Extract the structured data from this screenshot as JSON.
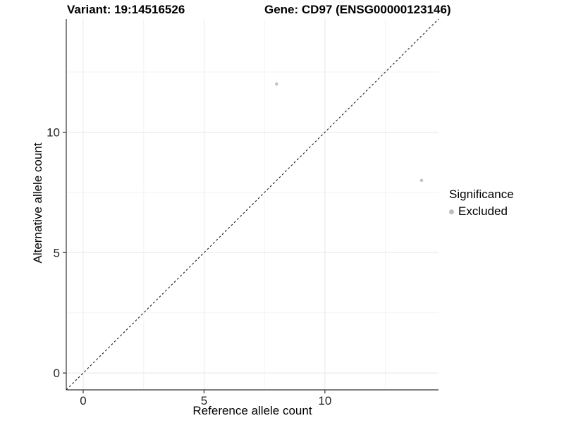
{
  "chart_data": {
    "type": "scatter",
    "title_left": "Variant: 19:14516526",
    "title_right": "Gene: CD97 (ENSG00000123146)",
    "xlabel": "Reference allele count",
    "ylabel": "Alternative allele count",
    "xlim": [
      -0.7,
      14.7
    ],
    "ylim": [
      -0.7,
      14.7
    ],
    "xticks": [
      0,
      5,
      10
    ],
    "yticks": [
      0,
      5,
      10
    ],
    "minor_ticks": [
      2.5,
      7.5,
      12.5
    ],
    "grid": true,
    "points": [
      {
        "x": 8,
        "y": 12,
        "series": "Excluded"
      },
      {
        "x": 14,
        "y": 8,
        "series": "Excluded"
      }
    ],
    "identity_line": {
      "style": "dashed",
      "from": [
        -0.7,
        -0.7
      ],
      "to": [
        14.7,
        14.7
      ]
    },
    "legend": {
      "title": "Significance",
      "position": "right",
      "items": [
        {
          "label": "Excluded",
          "color": "#bebebe"
        }
      ]
    },
    "colors": {
      "point": "#c3c3c3",
      "grid_major": "#e8e8e8",
      "grid_minor": "#f3f3f3",
      "axis": "#333333",
      "line": "#1a1a1a"
    }
  }
}
